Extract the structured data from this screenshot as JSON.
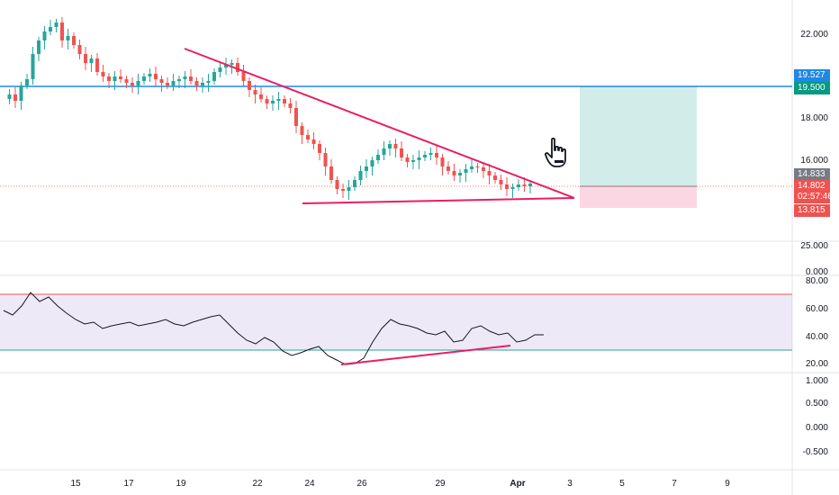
{
  "price_axis": {
    "labels": [
      "22.000",
      "19.500",
      "18.000",
      "16.000"
    ],
    "tags": {
      "target": "19.527",
      "level": "19.500",
      "entry": "14.833",
      "last_price": "14.802",
      "countdown": "02:57:46",
      "stop": "13.815"
    }
  },
  "volume_axis": {
    "labels": [
      "25.000",
      "0.000"
    ]
  },
  "rsi_axis": {
    "labels": [
      "80.00",
      "60.00",
      "40.00",
      "20.00"
    ]
  },
  "osc_axis": {
    "labels": [
      "1.000",
      "0.500",
      "0.000",
      "-0.500"
    ]
  },
  "time_axis": {
    "labels": [
      "15",
      "17",
      "19",
      "22",
      "24",
      "26",
      "29",
      "Apr",
      "3",
      "5",
      "7",
      "9"
    ]
  },
  "colors": {
    "up": "#26a69a",
    "down": "#ef5350",
    "trendline": "#e91e63",
    "horizontal_line": "#1e88e5",
    "rsi_band": "#7e57c2",
    "target_zone": "#b2dfdb",
    "stop_zone": "#f8bbd0"
  },
  "icons": {
    "cursor": "pointer-hand-icon"
  }
}
